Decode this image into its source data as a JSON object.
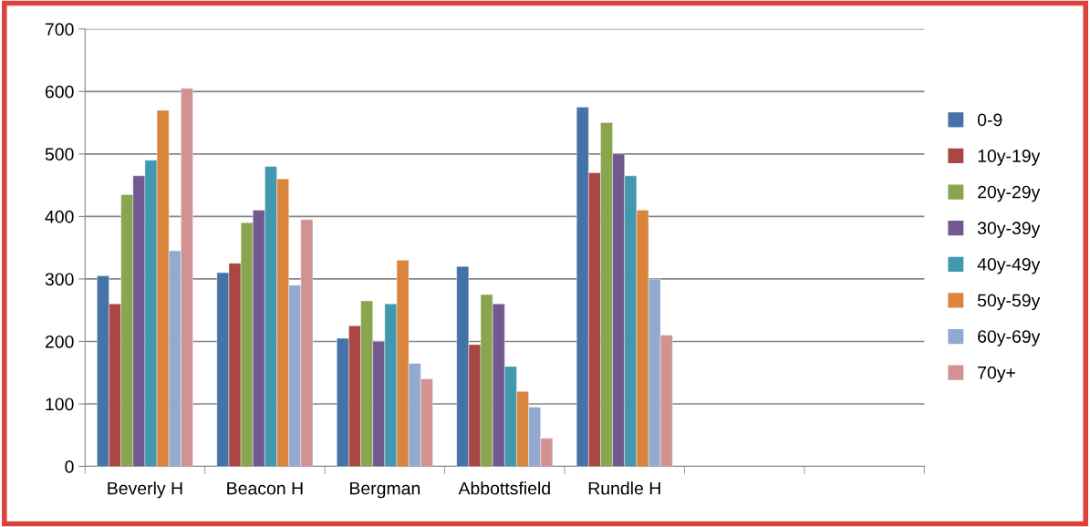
{
  "chart_data": {
    "type": "bar",
    "categories": [
      "Beverly H",
      "Beacon H",
      "Bergman",
      "Abbottsfield",
      "Rundle H",
      null,
      null
    ],
    "series": [
      {
        "name": "0-9",
        "color": "#4572a7",
        "values": [
          305,
          310,
          205,
          320,
          575,
          null,
          null
        ]
      },
      {
        "name": "10y-19y",
        "color": "#aa4643",
        "values": [
          260,
          325,
          225,
          195,
          470,
          null,
          null
        ]
      },
      {
        "name": "20y-29y",
        "color": "#89a54e",
        "values": [
          435,
          390,
          265,
          275,
          550,
          null,
          null
        ]
      },
      {
        "name": "30y-39y",
        "color": "#71588f",
        "values": [
          465,
          410,
          200,
          260,
          500,
          null,
          null
        ]
      },
      {
        "name": "40y-49y",
        "color": "#4198af",
        "values": [
          490,
          480,
          260,
          160,
          465,
          null,
          null
        ]
      },
      {
        "name": "50y-59y",
        "color": "#db843d",
        "values": [
          570,
          460,
          330,
          120,
          410,
          null,
          null
        ]
      },
      {
        "name": "60y-69y",
        "color": "#93a9cf",
        "values": [
          345,
          290,
          165,
          95,
          300,
          null,
          null
        ]
      },
      {
        "name": "70y+",
        "color": "#d19392",
        "values": [
          605,
          395,
          140,
          45,
          210,
          null,
          null
        ]
      }
    ],
    "ylim": [
      0,
      700
    ],
    "yticks": [
      0,
      100,
      200,
      300,
      400,
      500,
      600,
      700
    ],
    "grid": "y",
    "legend": "right"
  }
}
